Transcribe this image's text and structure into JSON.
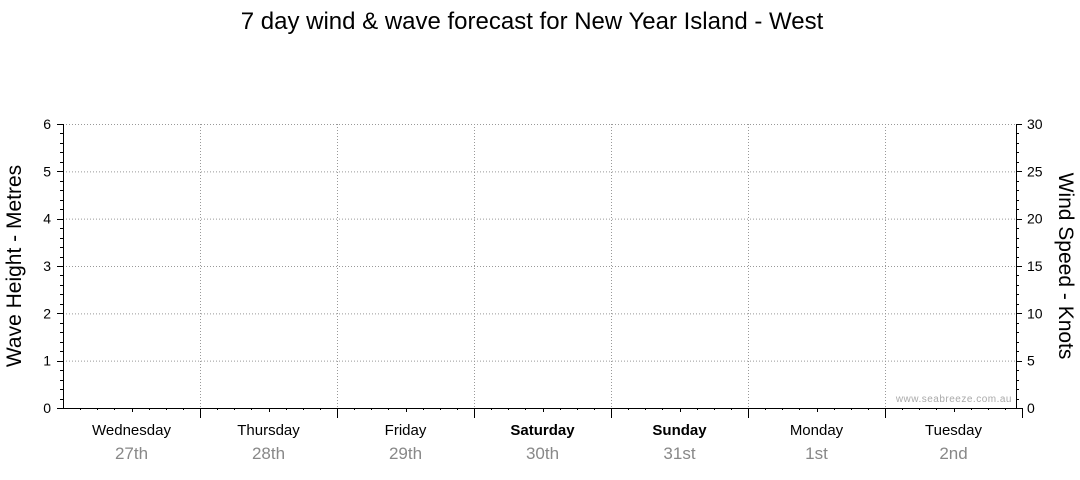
{
  "chart_data": {
    "type": "line",
    "title": "7 day wind & wave forecast for New Year Island - West",
    "left_axis": {
      "label": "Wave Height - Metres",
      "ylim": [
        0,
        6
      ],
      "ticks": [
        "0",
        "1",
        "2",
        "3",
        "4",
        "5",
        "6"
      ]
    },
    "right_axis": {
      "label": "Wind Speed - Knots",
      "ylim": [
        0,
        30
      ],
      "ticks": [
        "0",
        "5",
        "10",
        "15",
        "20",
        "25",
        "30"
      ]
    },
    "days": [
      {
        "name": "Wednesday",
        "date": "27th",
        "weekend": false
      },
      {
        "name": "Thursday",
        "date": "28th",
        "weekend": false
      },
      {
        "name": "Friday",
        "date": "29th",
        "weekend": false
      },
      {
        "name": "Saturday",
        "date": "30th",
        "weekend": true
      },
      {
        "name": "Sunday",
        "date": "31st",
        "weekend": true
      },
      {
        "name": "Monday",
        "date": "1st",
        "weekend": false
      },
      {
        "name": "Tuesday",
        "date": "2nd",
        "weekend": false
      }
    ],
    "series": [],
    "grid": true,
    "watermark": "www.seabreeze.com.au",
    "colors": {
      "axis": "#000000",
      "grid": "#999999",
      "date_text": "#888888",
      "watermark": "#aaaaaa"
    }
  }
}
